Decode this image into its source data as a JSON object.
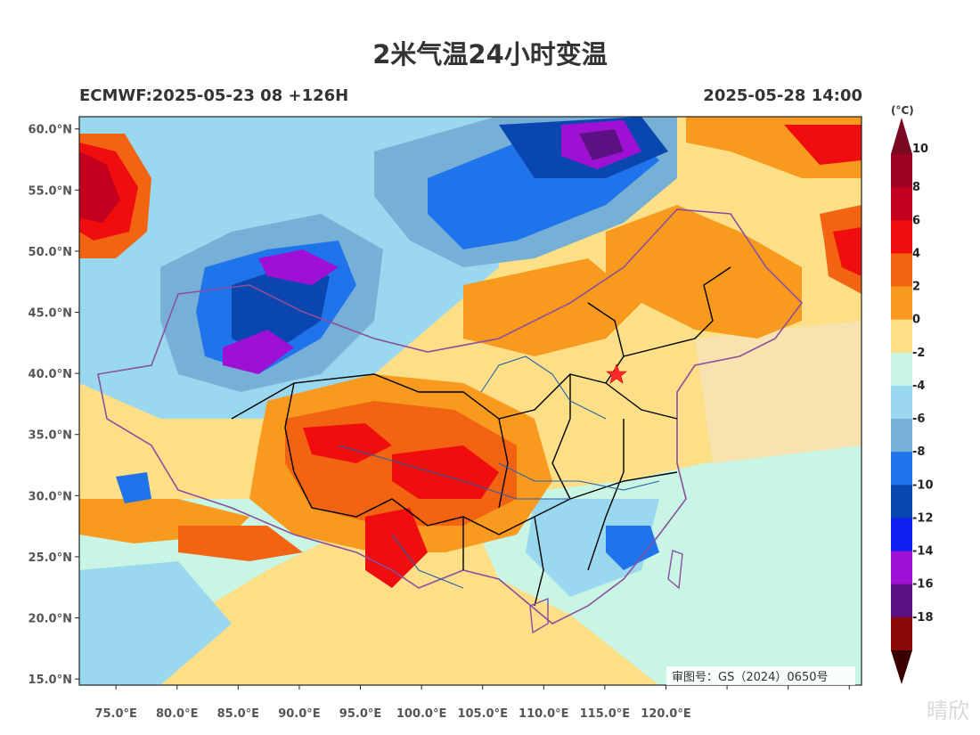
{
  "header": {
    "title": "2米气温24小时变温",
    "model_run": "ECMWF:2025-05-23 08 +126H",
    "valid_time": "2025-05-28 14:00"
  },
  "map": {
    "lat_ticks": [
      "60.0°N",
      "55.0°N",
      "50.0°N",
      "45.0°N",
      "40.0°N",
      "35.0°N",
      "30.0°N",
      "25.0°N",
      "20.0°N",
      "15.0°N"
    ],
    "lon_ticks": [
      "75.0°E",
      "80.0°E",
      "85.0°E",
      "90.0°E",
      "95.0°E",
      "100.0°E",
      "105.0°E",
      "110.0°E",
      "115.0°E",
      "120.0°E"
    ],
    "lon_range": [
      72,
      136
    ],
    "lat_range": [
      14.5,
      61
    ],
    "approval_number": "审图号：GS（2024）0650号",
    "capital_marker": "star-red"
  },
  "colorbar": {
    "unit": "(°C)",
    "labels": [
      "10",
      "8",
      "6",
      "4",
      "2",
      "0",
      "-2",
      "-4",
      "-6",
      "-8",
      "-10",
      "-12",
      "-14",
      "-16",
      "-18"
    ],
    "colors": [
      "#9e0024",
      "#c4001e",
      "#ef0d0d",
      "#f26412",
      "#f89a1e",
      "#fcdf86",
      "#c9f6e4",
      "#9ad8ef",
      "#76b0d6",
      "#1f74eb",
      "#0a46b0",
      "#0e1ff0",
      "#a010d4",
      "#5b1182",
      "#8a0a0a"
    ],
    "top_arrow_color": "#7a0a20",
    "bottom_arrow_color": "#3a0000"
  },
  "watermark": "晴欣"
}
